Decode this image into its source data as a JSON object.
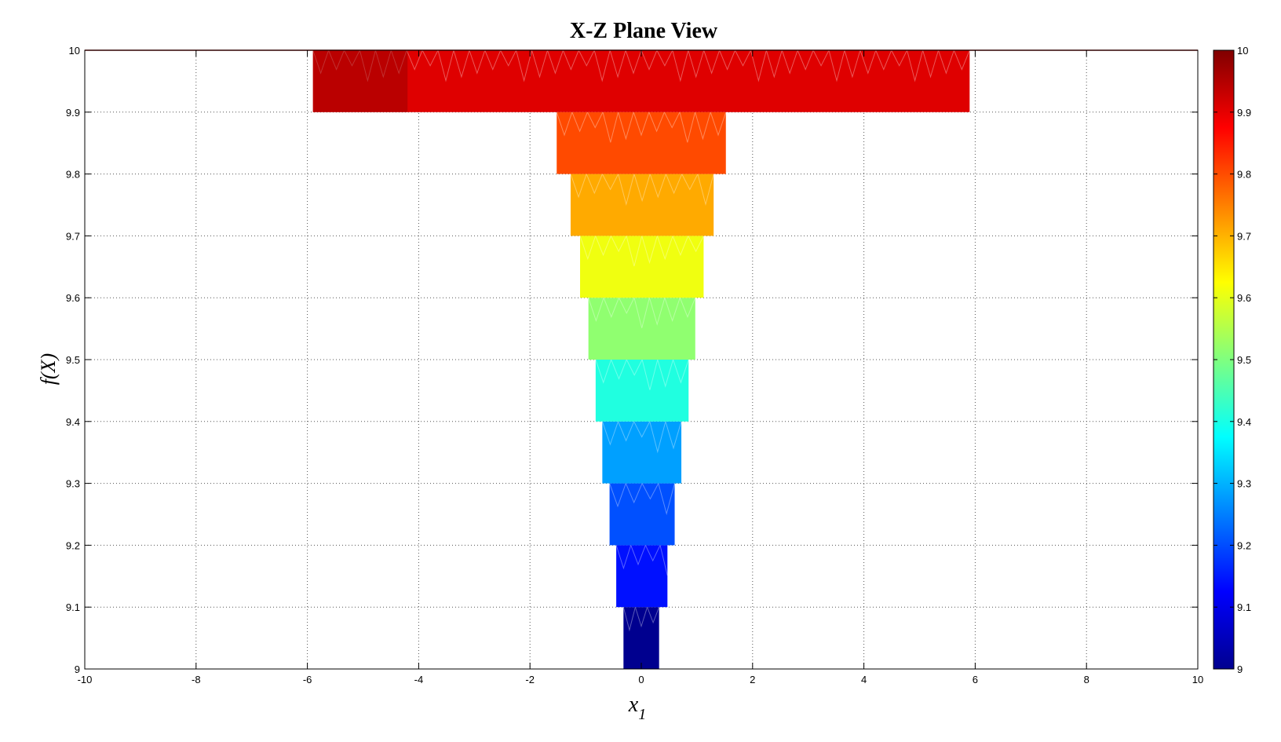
{
  "chart_data": {
    "type": "area",
    "title": "X-Z Plane View",
    "xlabel": "x",
    "xlabel_subscript": "1",
    "ylabel": "f(X)",
    "xlim": [
      -10,
      10
    ],
    "ylim": [
      9,
      10
    ],
    "x_ticks": [
      -10,
      -8,
      -6,
      -4,
      -2,
      0,
      2,
      4,
      6,
      8,
      10
    ],
    "y_ticks": [
      9,
      9.1,
      9.2,
      9.3,
      9.4,
      9.5,
      9.6,
      9.7,
      9.8,
      9.9,
      10
    ],
    "grid": true,
    "colormap": "jet",
    "colorbar": {
      "placement": "right",
      "range": [
        9,
        10
      ],
      "ticks": [
        9,
        9.1,
        9.2,
        9.3,
        9.4,
        9.5,
        9.6,
        9.7,
        9.8,
        9.9,
        10
      ]
    },
    "bands": [
      {
        "z_low": 9.0,
        "z_high": 9.1,
        "x_left": -0.32,
        "x_right": 0.32,
        "color": "#00008f"
      },
      {
        "z_low": 9.1,
        "z_high": 9.2,
        "x_left": -0.45,
        "x_right": 0.47,
        "color": "#0010ff"
      },
      {
        "z_low": 9.2,
        "z_high": 9.3,
        "x_left": -0.57,
        "x_right": 0.6,
        "color": "#0050ff"
      },
      {
        "z_low": 9.3,
        "z_high": 9.4,
        "x_left": -0.7,
        "x_right": 0.72,
        "color": "#00a0ff"
      },
      {
        "z_low": 9.4,
        "z_high": 9.5,
        "x_left": -0.82,
        "x_right": 0.85,
        "color": "#20ffe0"
      },
      {
        "z_low": 9.5,
        "z_high": 9.6,
        "x_left": -0.95,
        "x_right": 0.97,
        "color": "#90ff70"
      },
      {
        "z_low": 9.6,
        "z_high": 9.7,
        "x_left": -1.1,
        "x_right": 1.12,
        "color": "#f0ff10"
      },
      {
        "z_low": 9.7,
        "z_high": 9.8,
        "x_left": -1.27,
        "x_right": 1.3,
        "color": "#ffaa00"
      },
      {
        "z_low": 9.8,
        "z_high": 9.9,
        "x_left": -1.52,
        "x_right": 1.52,
        "color": "#ff4a00"
      },
      {
        "z_low": 9.9,
        "z_high": 10.0,
        "x_left": -5.9,
        "x_right": 5.9,
        "color": "#df0000"
      }
    ],
    "top_line": {
      "z": 10,
      "color": "#8f0000"
    }
  }
}
